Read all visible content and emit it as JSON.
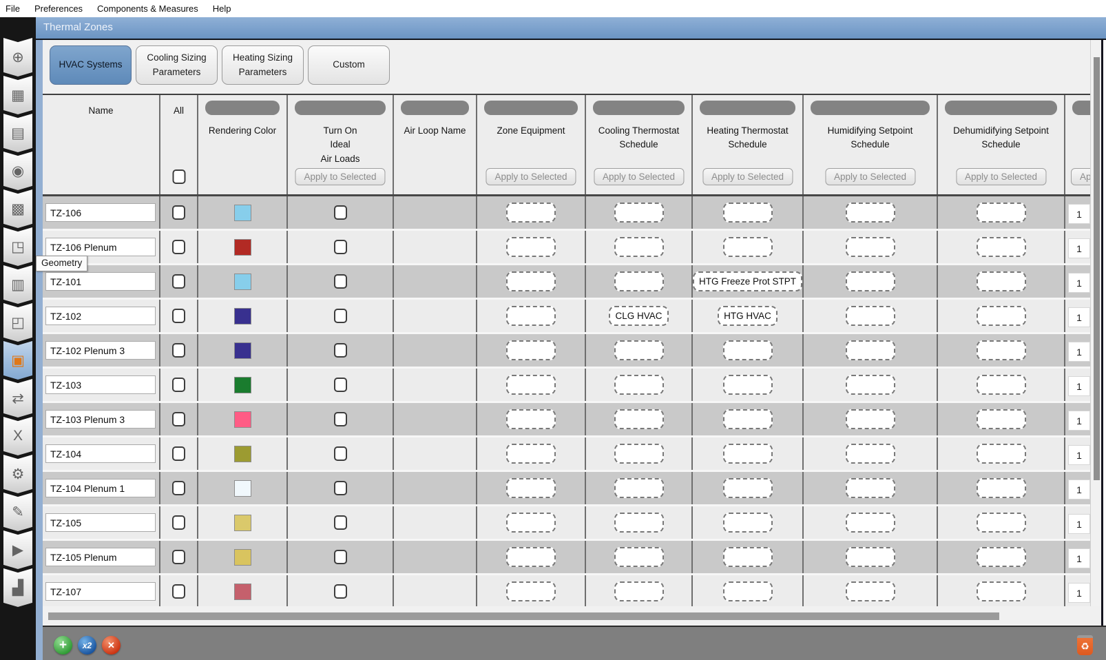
{
  "menu": {
    "items": [
      "File",
      "Preferences",
      "Components & Measures",
      "Help"
    ]
  },
  "window": {
    "title": "Thermal Zones"
  },
  "tabs": [
    {
      "label": "HVAC Systems",
      "active": true
    },
    {
      "label": "Cooling Sizing Parameters",
      "active": false
    },
    {
      "label": "Heating Sizing Parameters",
      "active": false
    },
    {
      "label": "Custom",
      "active": false
    }
  ],
  "sidebar": {
    "tooltip": "Geometry",
    "items": [
      {
        "name": "site",
        "icon": "⊕",
        "active": false
      },
      {
        "name": "schedules",
        "icon": "▦",
        "active": false
      },
      {
        "name": "constructions",
        "icon": "▤",
        "active": false
      },
      {
        "name": "loads",
        "icon": "◉",
        "active": false
      },
      {
        "name": "space-types",
        "icon": "▩",
        "active": false
      },
      {
        "name": "geometry",
        "icon": "◳",
        "active": false
      },
      {
        "name": "facility",
        "icon": "▥",
        "active": false
      },
      {
        "name": "spaces",
        "icon": "◰",
        "active": false
      },
      {
        "name": "thermal-zones",
        "icon": "▣",
        "active": true
      },
      {
        "name": "hvac-systems",
        "icon": "⇄",
        "active": false
      },
      {
        "name": "output-variables",
        "icon": "X",
        "active": false
      },
      {
        "name": "simulation-settings",
        "icon": "⚙",
        "active": false
      },
      {
        "name": "measures",
        "icon": "✎",
        "active": false
      },
      {
        "name": "run-simulation",
        "icon": "▶",
        "active": false
      },
      {
        "name": "results-summary",
        "icon": "▟",
        "active": false
      }
    ]
  },
  "table": {
    "apply_label": "Apply to Selected",
    "columns": [
      {
        "id": "name",
        "label": "Name",
        "pill": false,
        "apply": false
      },
      {
        "id": "all",
        "label": "All",
        "pill": false,
        "apply": false,
        "checkbox": true
      },
      {
        "id": "rendering-color",
        "label": "Rendering Color",
        "pill": true,
        "apply": false
      },
      {
        "id": "ideal-air-loads",
        "label": "Turn On\nIdeal\nAir Loads",
        "pill": true,
        "apply": true
      },
      {
        "id": "air-loop-name",
        "label": "Air Loop Name",
        "pill": true,
        "apply": false
      },
      {
        "id": "zone-equipment",
        "label": "Zone Equipment",
        "pill": true,
        "apply": true
      },
      {
        "id": "cooling-thermostat-schedule",
        "label": "Cooling Thermostat\nSchedule",
        "pill": true,
        "apply": true
      },
      {
        "id": "heating-thermostat-schedule",
        "label": "Heating Thermostat\nSchedule",
        "pill": true,
        "apply": true
      },
      {
        "id": "humidifying-setpoint-schedule",
        "label": "Humidifying Setpoint\nSchedule",
        "pill": true,
        "apply": true
      },
      {
        "id": "dehumidifying-setpoint-schedule",
        "label": "Dehumidifying Setpoint\nSchedule",
        "pill": true,
        "apply": true
      },
      {
        "id": "multiplier",
        "label": "",
        "pill": true,
        "apply": true,
        "partial": true
      }
    ],
    "rows": [
      {
        "name": "TZ-106",
        "color": "#87CEEB",
        "cooling": "",
        "heating": "",
        "multiplier": "1"
      },
      {
        "name": "TZ-106 Plenum",
        "color": "#B22A24",
        "cooling": "",
        "heating": "",
        "multiplier": "1"
      },
      {
        "name": "TZ-101",
        "color": "#87CEEB",
        "cooling": "",
        "heating": "HTG Freeze Prot STPT",
        "multiplier": "1"
      },
      {
        "name": "TZ-102",
        "color": "#38308F",
        "cooling": "CLG HVAC",
        "heating": "HTG HVAC",
        "multiplier": "1"
      },
      {
        "name": "TZ-102 Plenum 3",
        "color": "#38308F",
        "cooling": "",
        "heating": "",
        "multiplier": "1"
      },
      {
        "name": "TZ-103",
        "color": "#1A7C2E",
        "cooling": "",
        "heating": "",
        "multiplier": "1"
      },
      {
        "name": "TZ-103 Plenum 3",
        "color": "#FF5C85",
        "cooling": "",
        "heating": "",
        "multiplier": "1"
      },
      {
        "name": "TZ-104",
        "color": "#9C9B31",
        "cooling": "",
        "heating": "",
        "multiplier": "1"
      },
      {
        "name": "TZ-104 Plenum 1",
        "color": "#F1F8FC",
        "cooling": "",
        "heating": "",
        "multiplier": "1"
      },
      {
        "name": "TZ-105",
        "color": "#DAC96B",
        "cooling": "",
        "heating": "",
        "multiplier": "1"
      },
      {
        "name": "TZ-105 Plenum",
        "color": "#D9C45F",
        "cooling": "",
        "heating": "",
        "multiplier": "1"
      },
      {
        "name": "TZ-107",
        "color": "#C5606C",
        "cooling": "",
        "heating": "",
        "multiplier": "1"
      }
    ]
  },
  "bottom": {
    "add_label": "+",
    "duplicate_label": "x2",
    "delete_label": "✕",
    "trash_icon": "♻"
  },
  "colors": {
    "titlebar": "#7da2cd",
    "active_tab": "#6f97c3",
    "row_dark": "#c9c9c9",
    "row_light": "#ececec",
    "bottom_bar": "#7f7f7f",
    "sidebar": "#161616"
  }
}
